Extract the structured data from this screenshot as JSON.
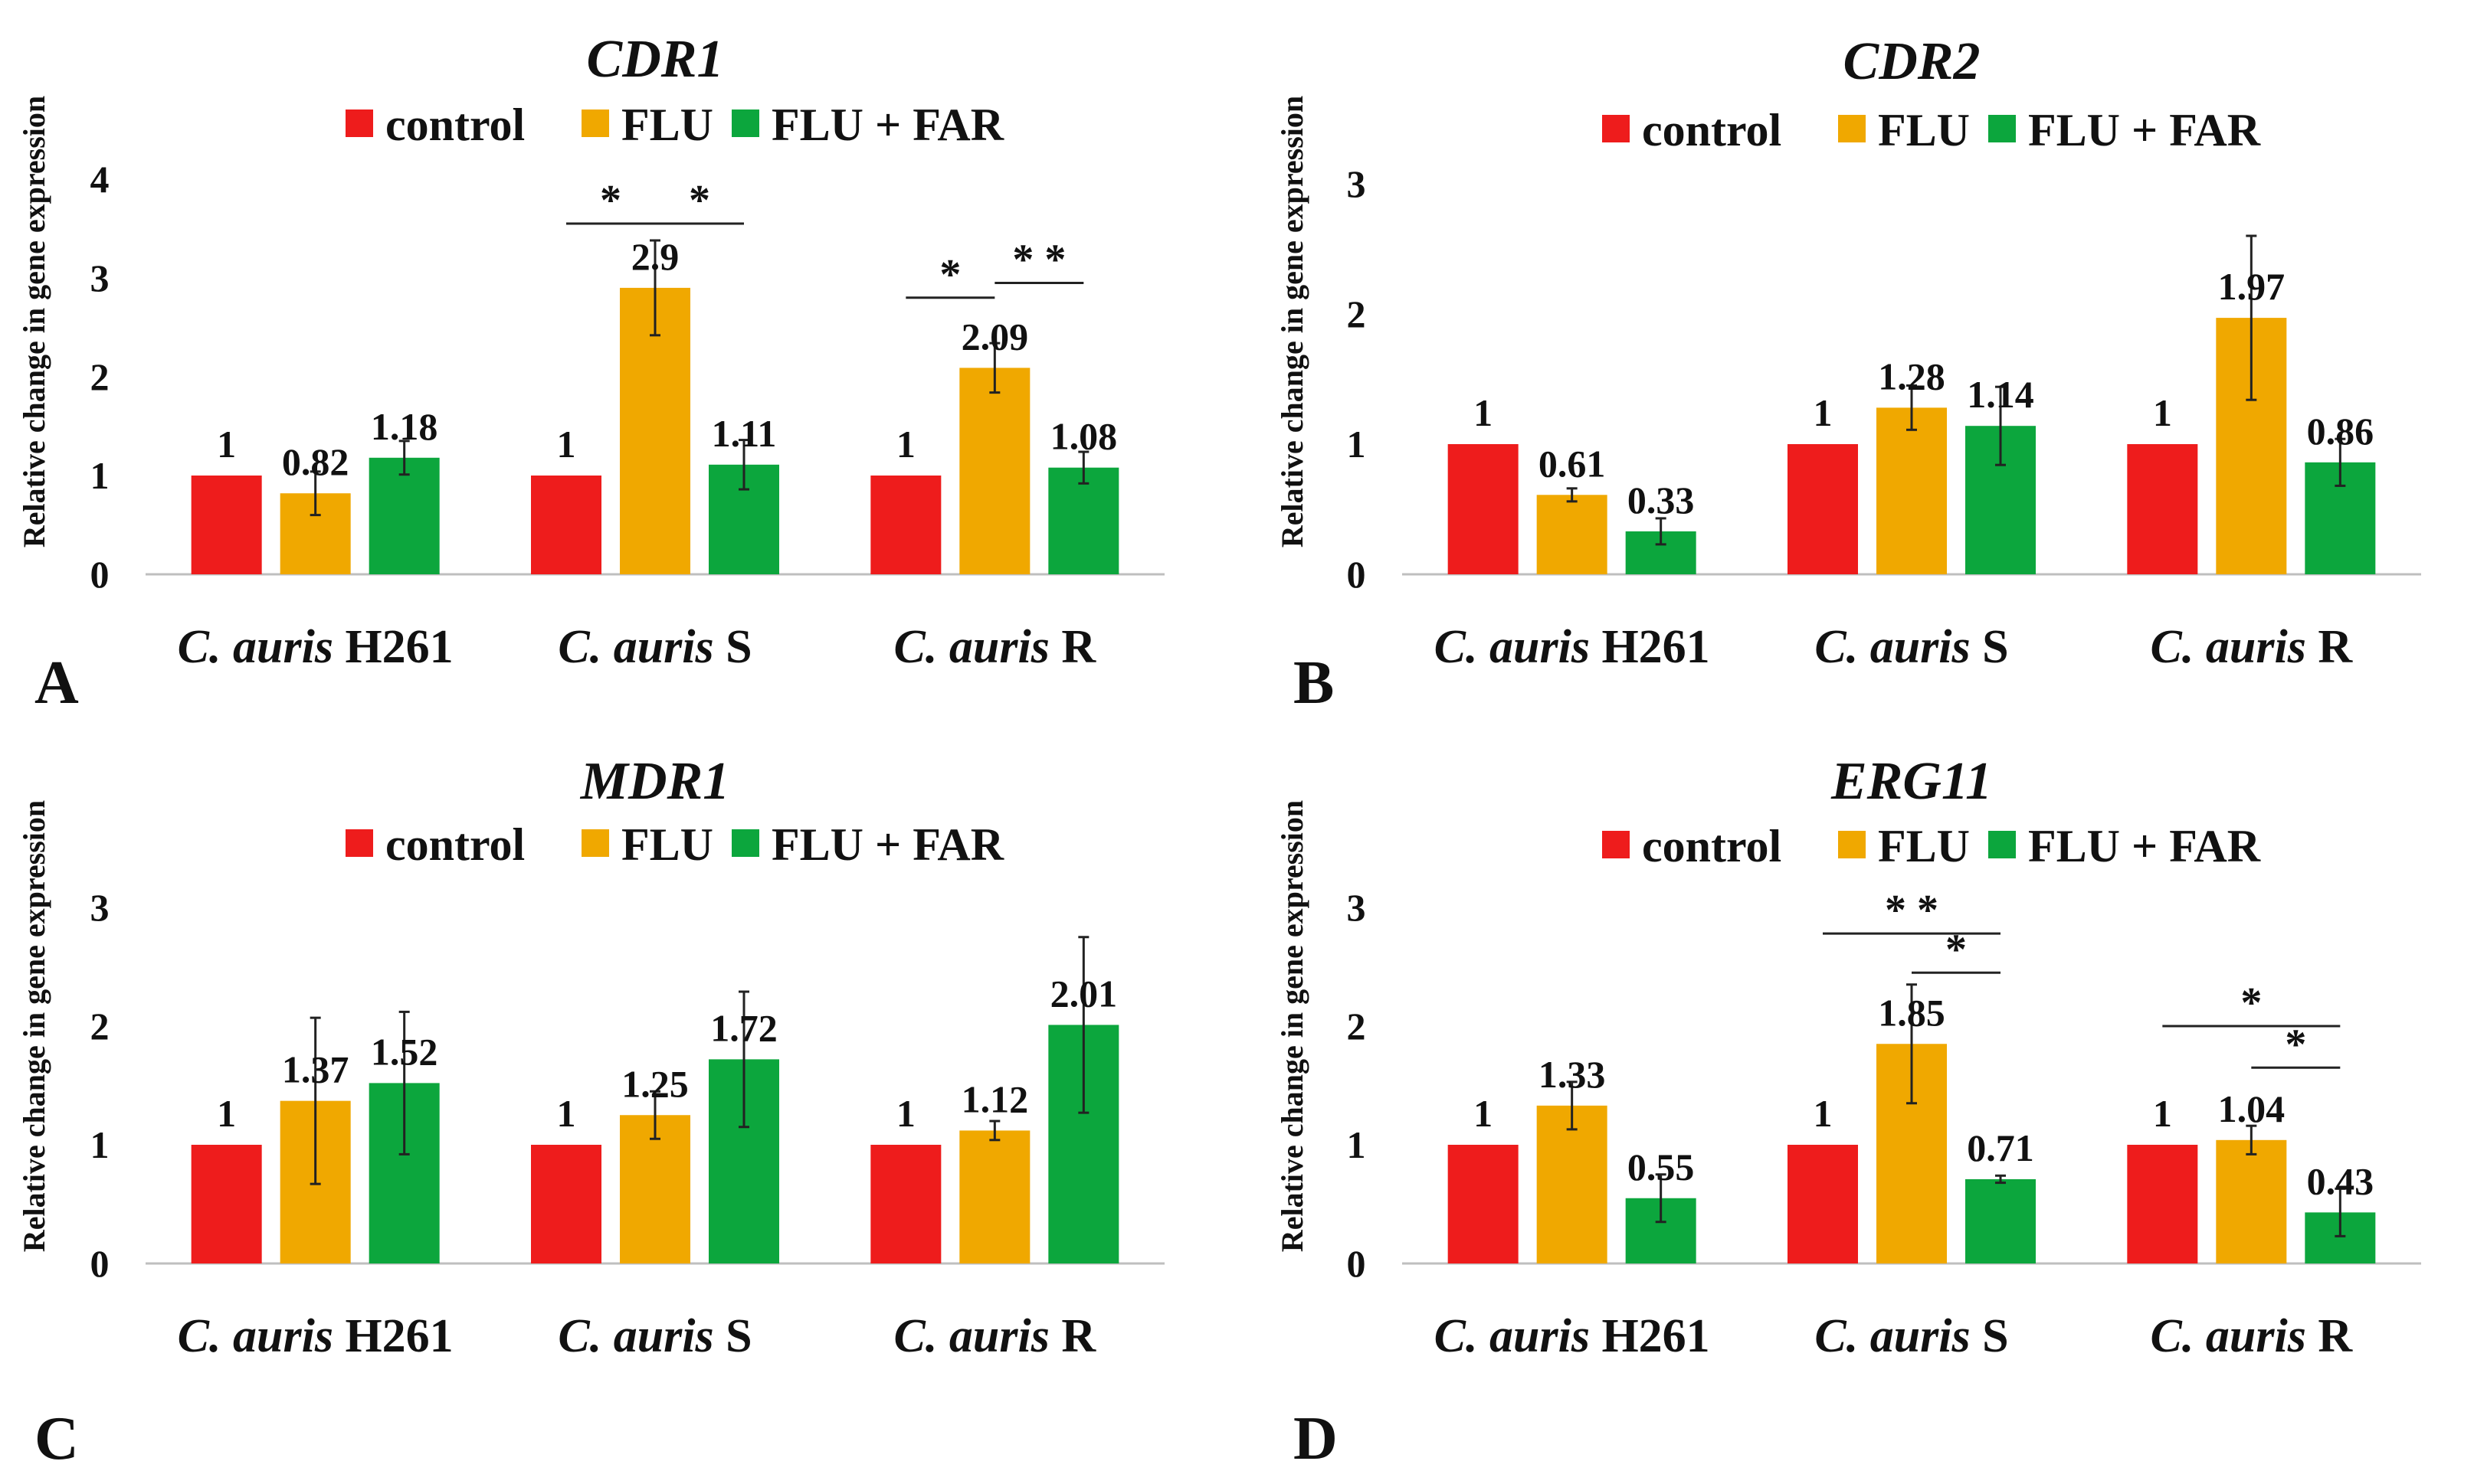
{
  "figure": {
    "background": "#ffffff"
  },
  "colors": {
    "control": "#ee1c1c",
    "FLU": "#f0a800",
    "FLU + FAR": "#0ca63d"
  },
  "chart_data": [
    {
      "panel": "A",
      "type": "bar",
      "title": "CDR1",
      "ylabel": "Relative change in gene expression",
      "xlabel": "",
      "ylim": [
        0,
        4
      ],
      "yticks": [
        0,
        1,
        2,
        3,
        4
      ],
      "legend": "top-center",
      "categories": [
        {
          "italic": "C. auris",
          "suffix": "H261"
        },
        {
          "italic": "C. auris",
          "suffix": "S"
        },
        {
          "italic": "C. auris",
          "suffix": "R"
        }
      ],
      "series": [
        {
          "name": "control",
          "values": [
            1,
            1,
            1
          ],
          "labels": [
            "1",
            "1",
            "1"
          ],
          "errors": [
            null,
            null,
            null
          ]
        },
        {
          "name": "FLU",
          "values": [
            0.82,
            2.9,
            2.09
          ],
          "labels": [
            "0.82",
            "2.9",
            "2.09"
          ],
          "errors": [
            0.22,
            0.48,
            0.25
          ]
        },
        {
          "name": "FLU + FAR",
          "values": [
            1.18,
            1.11,
            1.08
          ],
          "labels": [
            "1.18",
            "1.11",
            "1.08"
          ],
          "errors": [
            0.17,
            0.25,
            0.16
          ]
        }
      ],
      "significance": [
        {
          "category": 1,
          "from": 0,
          "to": 1,
          "label": "*",
          "level": 3.55
        },
        {
          "category": 1,
          "from": 1,
          "to": 2,
          "label": "*",
          "level": 3.55
        },
        {
          "category": 2,
          "from": 0,
          "to": 1,
          "label": "*",
          "level": 2.8
        },
        {
          "category": 2,
          "from": 1,
          "to": 2,
          "label": "* *",
          "level": 2.95
        }
      ]
    },
    {
      "panel": "B",
      "type": "bar",
      "title": "CDR2",
      "ylabel": "Relative change in gene expression",
      "xlabel": "",
      "ylim": [
        0,
        3
      ],
      "yticks": [
        0,
        1,
        2,
        3
      ],
      "legend": "top-center",
      "categories": [
        {
          "italic": "C. auris",
          "suffix": "H261"
        },
        {
          "italic": "C. auris",
          "suffix": "S"
        },
        {
          "italic": "C. auris",
          "suffix": "R"
        }
      ],
      "series": [
        {
          "name": "control",
          "values": [
            1,
            1,
            1
          ],
          "labels": [
            "1",
            "1",
            "1"
          ],
          "errors": [
            null,
            null,
            null
          ]
        },
        {
          "name": "FLU",
          "values": [
            0.61,
            1.28,
            1.97
          ],
          "labels": [
            "0.61",
            "1.28",
            "1.97"
          ],
          "errors": [
            0.05,
            0.17,
            0.63
          ]
        },
        {
          "name": "FLU + FAR",
          "values": [
            0.33,
            1.14,
            0.86
          ],
          "labels": [
            "0.33",
            "1.14",
            "0.86"
          ],
          "errors": [
            0.1,
            0.3,
            0.18
          ]
        }
      ],
      "significance": []
    },
    {
      "panel": "C",
      "type": "bar",
      "title": "MDR1",
      "ylabel": "Relative change in gene expression",
      "xlabel": "",
      "ylim": [
        0,
        3
      ],
      "yticks": [
        0,
        1,
        2,
        3
      ],
      "legend": "top-center",
      "categories": [
        {
          "italic": "C. auris",
          "suffix": "H261"
        },
        {
          "italic": "C. auris",
          "suffix": "S"
        },
        {
          "italic": "C. auris",
          "suffix": "R"
        }
      ],
      "series": [
        {
          "name": "control",
          "values": [
            1,
            1,
            1
          ],
          "labels": [
            "1",
            "1",
            "1"
          ],
          "errors": [
            null,
            null,
            null
          ]
        },
        {
          "name": "FLU",
          "values": [
            1.37,
            1.25,
            1.12
          ],
          "labels": [
            "1.37",
            "1.25",
            "1.12"
          ],
          "errors": [
            0.7,
            0.2,
            0.08
          ]
        },
        {
          "name": "FLU + FAR",
          "values": [
            1.52,
            1.72,
            2.01
          ],
          "labels": [
            "1.52",
            "1.72",
            "2.01"
          ],
          "errors": [
            0.6,
            0.57,
            0.74
          ]
        }
      ],
      "significance": []
    },
    {
      "panel": "D",
      "type": "bar",
      "title": "ERG11",
      "ylabel": "Relative change in gene expression",
      "xlabel": "",
      "ylim": [
        0,
        3
      ],
      "yticks": [
        0,
        1,
        2,
        3
      ],
      "legend": "top-center",
      "categories": [
        {
          "italic": "C. auris",
          "suffix": "H261"
        },
        {
          "italic": "C. auris",
          "suffix": "S"
        },
        {
          "italic": "C. auris",
          "suffix": "R"
        }
      ],
      "series": [
        {
          "name": "control",
          "values": [
            1,
            1,
            1
          ],
          "labels": [
            "1",
            "1",
            "1"
          ],
          "errors": [
            null,
            null,
            null
          ]
        },
        {
          "name": "FLU",
          "values": [
            1.33,
            1.85,
            1.04
          ],
          "labels": [
            "1.33",
            "1.85",
            "1.04"
          ],
          "errors": [
            0.2,
            0.5,
            0.12
          ]
        },
        {
          "name": "FLU + FAR",
          "values": [
            0.55,
            0.71,
            0.43
          ],
          "labels": [
            "0.55",
            "0.71",
            "0.43"
          ],
          "errors": [
            0.2,
            0.03,
            0.2
          ]
        }
      ],
      "significance": [
        {
          "category": 1,
          "from": 0,
          "to": 2,
          "label": "* *",
          "level": 2.78
        },
        {
          "category": 1,
          "from": 1,
          "to": 2,
          "label": "*",
          "level": 2.45
        },
        {
          "category": 2,
          "from": 0,
          "to": 2,
          "label": "*",
          "level": 2.0
        },
        {
          "category": 2,
          "from": 1,
          "to": 2,
          "label": "*",
          "level": 1.65
        }
      ]
    }
  ]
}
